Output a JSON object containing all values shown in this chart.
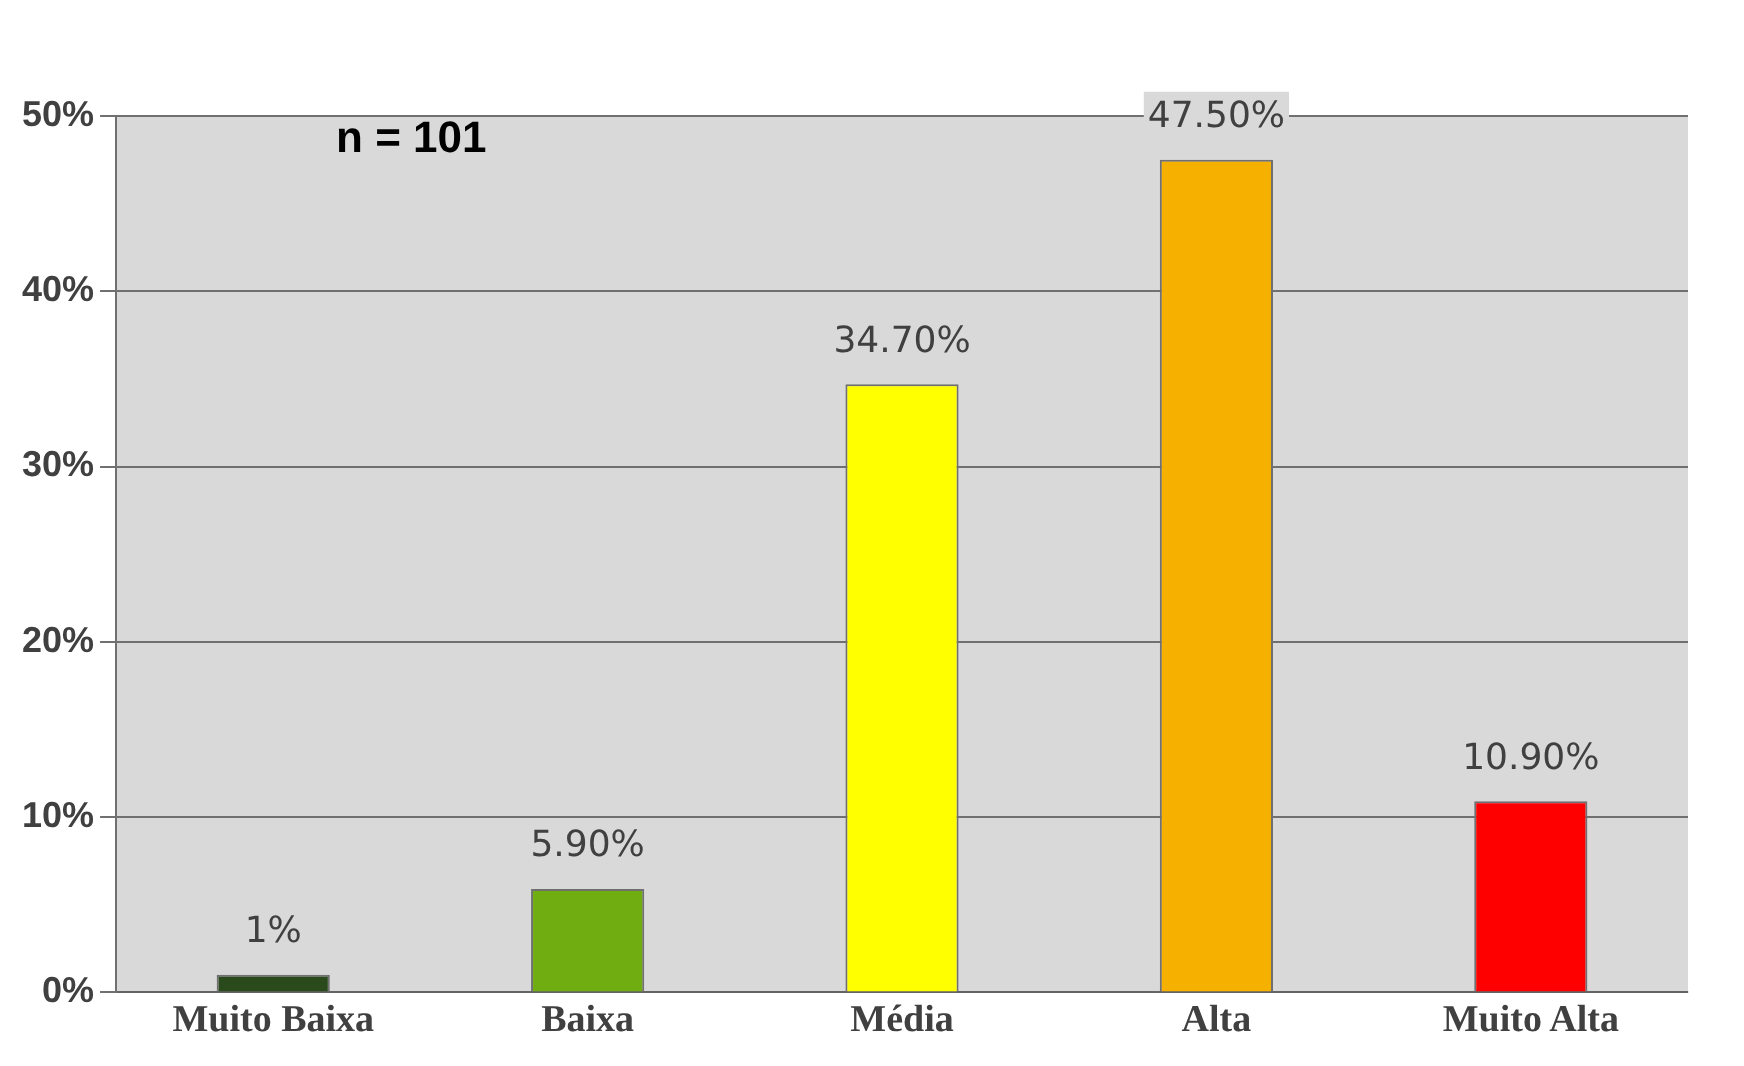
{
  "chart_data": {
    "type": "bar",
    "categories": [
      "Muito Baixa",
      "Baixa",
      "Média",
      "Alta",
      "Muito Alta"
    ],
    "values": [
      1,
      5.9,
      34.7,
      47.5,
      10.9
    ],
    "colors": [
      "#2a4a1c",
      "#70ad10",
      "#ffff00",
      "#f5b000",
      "#ff0000"
    ],
    "value_labels": [
      "1%",
      "5.90%",
      "34.70%",
      "47.50%",
      "10.90%"
    ],
    "ylim": [
      0,
      50
    ],
    "yticks": [
      {
        "value": 0,
        "label": "0%"
      },
      {
        "value": 10,
        "label": "10%"
      },
      {
        "value": 20,
        "label": "20%"
      },
      {
        "value": 30,
        "label": "30%"
      },
      {
        "value": 40,
        "label": "40%"
      },
      {
        "value": 50,
        "label": "50%"
      }
    ],
    "grid": "y",
    "annotations": [
      "n = 101"
    ]
  }
}
